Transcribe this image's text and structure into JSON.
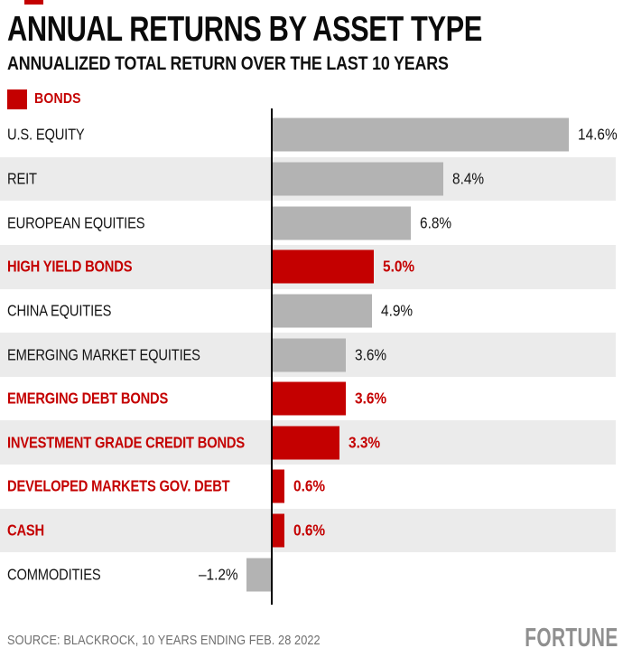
{
  "accent_color": "#c40000",
  "chart_data": {
    "type": "bar",
    "orientation": "horizontal",
    "title": "ANNUAL RETURNS BY ASSET TYPE",
    "subtitle": "ANNUALIZED TOTAL RETURN OVER THE LAST 10 YEARS",
    "legend": {
      "label": "BONDS",
      "position": "top-left",
      "color": "#c40000"
    },
    "categories": [
      "U.S. EQUITY",
      "REIT",
      "EUROPEAN EQUITIES",
      "HIGH YIELD BONDS",
      "CHINA EQUITIES",
      "EMERGING MARKET EQUITIES",
      "EMERGING DEBT BONDS",
      "INVESTMENT GRADE CREDIT BONDS",
      "DEVELOPED MARKETS GOV. DEBT",
      "CASH",
      "COMMODITIES"
    ],
    "values": [
      14.6,
      8.4,
      6.8,
      5.0,
      4.9,
      3.6,
      3.6,
      3.3,
      0.6,
      0.6,
      -1.2
    ],
    "value_labels": [
      "14.6%",
      "8.4%",
      "6.8%",
      "5.0%",
      "4.9%",
      "3.6%",
      "3.6%",
      "3.3%",
      "0.6%",
      "0.6%",
      "–1.2%"
    ],
    "bond_flags": [
      false,
      false,
      false,
      true,
      false,
      false,
      true,
      true,
      true,
      true,
      false
    ],
    "bar_colors": {
      "bond": "#c40000",
      "default": "#b3b3b3"
    },
    "row_band_color": "#ebebeb",
    "xlim": [
      -1.2,
      14.6
    ],
    "baseline": 0,
    "grid": false,
    "source": "SOURCE: BLACKROCK, 10 YEARS ENDING FEB. 28 2022"
  },
  "brand": {
    "label": "FORTUNE"
  }
}
